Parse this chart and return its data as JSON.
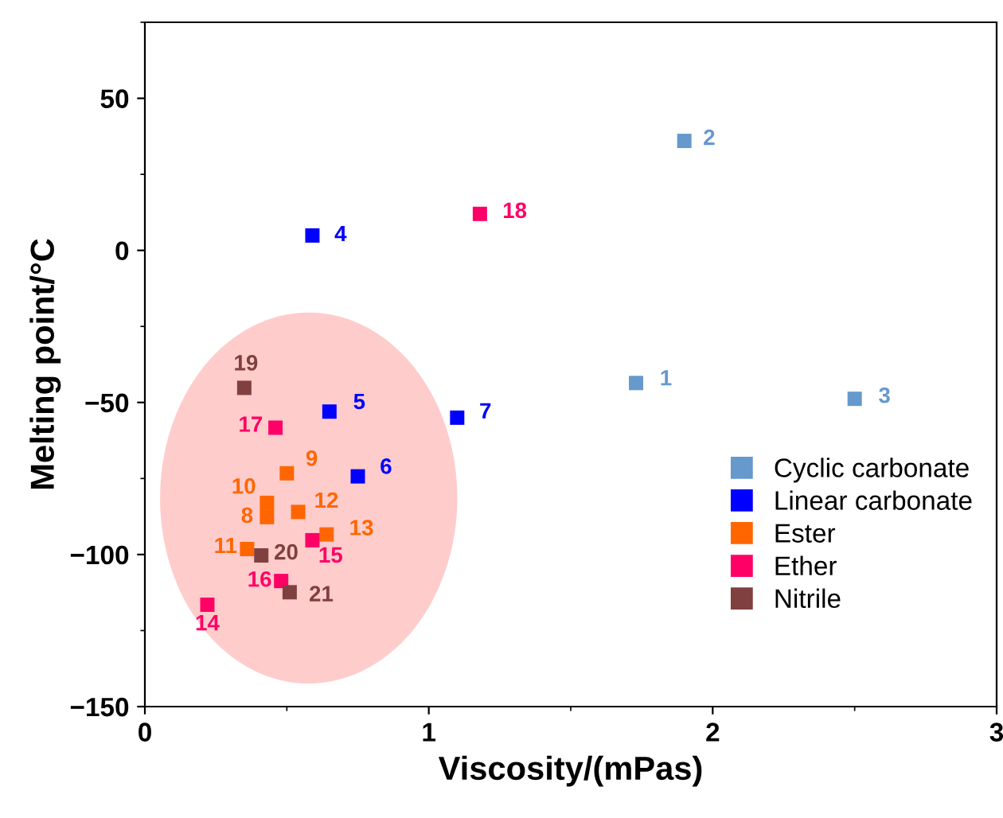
{
  "chart_data": {
    "type": "scatter",
    "xlabel": "Viscosity/(mPas)",
    "ylabel": "Melting point/°C",
    "xlim": [
      0,
      3
    ],
    "ylim": [
      -150,
      75
    ],
    "xticks": [
      0,
      1,
      2,
      3
    ],
    "yticks": [
      -150,
      -100,
      -50,
      0,
      50
    ],
    "marker": "square",
    "legend": "right",
    "grid": false,
    "series": [
      {
        "name": "Cyclic carbonate",
        "color": "#6699cc",
        "x": [
          1.73,
          1.9,
          2.5
        ],
        "values": [
          -43.6,
          36,
          -48.8
        ]
      },
      {
        "name": "Linear carbonate",
        "color": "#0000ff",
        "x": [
          0.59,
          0.65,
          0.75,
          1.1
        ],
        "values": [
          4.9,
          -53,
          -74.3,
          -55
        ]
      },
      {
        "name": "Ester",
        "color": "#ff6600",
        "x": [
          0.43,
          0.5,
          0.43,
          0.36,
          0.54,
          0.64
        ],
        "values": [
          -87.7,
          -73.3,
          -83,
          -98.2,
          -86,
          -93.4
        ]
      },
      {
        "name": "Ether",
        "color": "#ff0066",
        "x": [
          0.22,
          0.59,
          0.48,
          0.46,
          1.18
        ],
        "values": [
          -116.5,
          -95.3,
          -108.7,
          -58.3,
          12
        ]
      },
      {
        "name": "Nitrile",
        "color": "#804040",
        "x": [
          0.35,
          0.41,
          0.51
        ],
        "values": [
          -45.2,
          -100.3,
          -112.4
        ]
      }
    ],
    "annotations": [
      {
        "text": "1",
        "x": 1.73,
        "y": -43.6
      },
      {
        "text": "2",
        "x": 1.9,
        "y": 36
      },
      {
        "text": "3",
        "x": 2.5,
        "y": -48.8
      },
      {
        "text": "4",
        "x": 0.59,
        "y": 4.9
      },
      {
        "text": "5",
        "x": 0.65,
        "y": -53
      },
      {
        "text": "6",
        "x": 0.75,
        "y": -74.3
      },
      {
        "text": "7",
        "x": 1.1,
        "y": -55
      },
      {
        "text": "8",
        "x": 0.43,
        "y": -87.7
      },
      {
        "text": "9",
        "x": 0.5,
        "y": -73.3
      },
      {
        "text": "10",
        "x": 0.43,
        "y": -83
      },
      {
        "text": "11",
        "x": 0.36,
        "y": -98.2
      },
      {
        "text": "12",
        "x": 0.54,
        "y": -86
      },
      {
        "text": "13",
        "x": 0.64,
        "y": -93.4
      },
      {
        "text": "14",
        "x": 0.22,
        "y": -116.5
      },
      {
        "text": "15",
        "x": 0.59,
        "y": -95.3
      },
      {
        "text": "16",
        "x": 0.48,
        "y": -108.7
      },
      {
        "text": "17",
        "x": 0.46,
        "y": -58.3
      },
      {
        "text": "18",
        "x": 1.18,
        "y": 12
      },
      {
        "text": "19",
        "x": 0.35,
        "y": -45.2
      },
      {
        "text": "20",
        "x": 0.41,
        "y": -100.3
      },
      {
        "text": "21",
        "x": 0.51,
        "y": -112.4
      }
    ]
  }
}
